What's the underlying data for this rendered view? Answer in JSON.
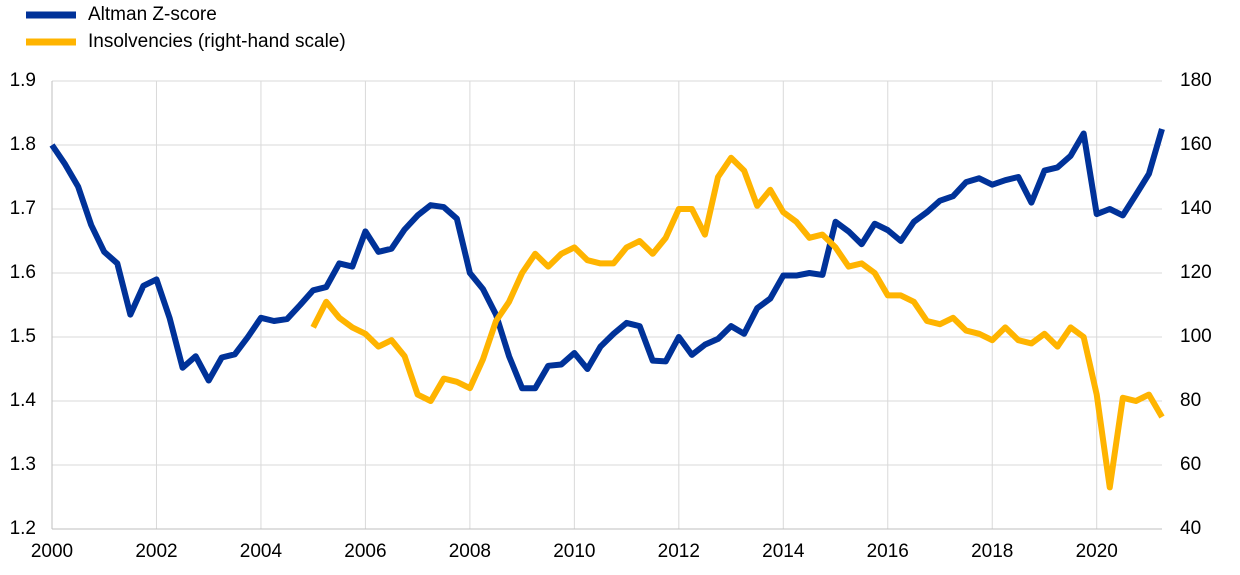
{
  "chart_data": {
    "type": "line",
    "x": [
      2000,
      2000.25,
      2000.5,
      2000.75,
      2001,
      2001.25,
      2001.5,
      2001.75,
      2002,
      2002.25,
      2002.5,
      2002.75,
      2003,
      2003.25,
      2003.5,
      2003.75,
      2004,
      2004.25,
      2004.5,
      2004.75,
      2005,
      2005.25,
      2005.5,
      2005.75,
      2006,
      2006.25,
      2006.5,
      2006.75,
      2007,
      2007.25,
      2007.5,
      2007.75,
      2008,
      2008.25,
      2008.5,
      2008.75,
      2009,
      2009.25,
      2009.5,
      2009.75,
      2010,
      2010.25,
      2010.5,
      2010.75,
      2011,
      2011.25,
      2011.5,
      2011.75,
      2012,
      2012.25,
      2012.5,
      2012.75,
      2013,
      2013.25,
      2013.5,
      2013.75,
      2014,
      2014.25,
      2014.5,
      2014.75,
      2015,
      2015.25,
      2015.5,
      2015.75,
      2016,
      2016.25,
      2016.5,
      2016.75,
      2017,
      2017.25,
      2017.5,
      2017.75,
      2018,
      2018.25,
      2018.5,
      2018.75,
      2019,
      2019.25,
      2019.5,
      2019.75,
      2020,
      2020.25,
      2020.5,
      2020.75,
      2021,
      2021.25
    ],
    "series": [
      {
        "name": "Altman Z-score",
        "color": "#003299",
        "axis": "y",
        "values": [
          1.8,
          1.77,
          1.735,
          1.675,
          1.633,
          1.615,
          1.535,
          1.58,
          1.59,
          1.53,
          1.452,
          1.47,
          1.432,
          1.468,
          1.473,
          1.5,
          1.53,
          1.525,
          1.528,
          1.55,
          1.573,
          1.578,
          1.615,
          1.61,
          1.665,
          1.633,
          1.638,
          1.668,
          1.69,
          1.706,
          1.703,
          1.685,
          1.6,
          1.575,
          1.535,
          1.47,
          1.42,
          1.42,
          1.455,
          1.457,
          1.475,
          1.45,
          1.485,
          1.505,
          1.522,
          1.517,
          1.463,
          1.462,
          1.5,
          1.472,
          1.488,
          1.497,
          1.517,
          1.505,
          1.545,
          1.56,
          1.596,
          1.596,
          1.6,
          1.597,
          1.68,
          1.665,
          1.645,
          1.677,
          1.667,
          1.65,
          1.68,
          1.695,
          1.713,
          1.72,
          1.742,
          1.748,
          1.738,
          1.745,
          1.75,
          1.71,
          1.76,
          1.765,
          1.783,
          1.818,
          1.692,
          1.7,
          1.69,
          1.722,
          1.755,
          1.825
        ]
      },
      {
        "name": "Insolvencies (right-hand scale)",
        "color": "#ffb400",
        "axis": "y2",
        "values": [
          null,
          null,
          null,
          null,
          null,
          null,
          null,
          null,
          null,
          null,
          null,
          null,
          null,
          null,
          null,
          null,
          null,
          null,
          null,
          null,
          103,
          111,
          106,
          103,
          101,
          97,
          99,
          94,
          82,
          80,
          87,
          86,
          84,
          93,
          105,
          111,
          120,
          126,
          122,
          126,
          128,
          124,
          123,
          123,
          128,
          130,
          126,
          131,
          140,
          140,
          132,
          150,
          156,
          152,
          141,
          146,
          139,
          136,
          131,
          132,
          128,
          122,
          123,
          120,
          113,
          113,
          111,
          105,
          104,
          106,
          102,
          101,
          99,
          103,
          99,
          98,
          101,
          97,
          103,
          100,
          82,
          53,
          81,
          80,
          82,
          75
        ]
      }
    ],
    "xlim": [
      2000,
      2021.25
    ],
    "xticks": [
      2000,
      2002,
      2004,
      2006,
      2008,
      2010,
      2012,
      2014,
      2016,
      2018,
      2020
    ],
    "ylim": [
      1.2,
      1.9
    ],
    "yticks": [
      1.2,
      1.3,
      1.4,
      1.5,
      1.6,
      1.7,
      1.8,
      1.9
    ],
    "y2lim": [
      40,
      180
    ],
    "y2ticks": [
      40,
      60,
      80,
      100,
      120,
      140,
      160,
      180
    ],
    "grid": true
  }
}
